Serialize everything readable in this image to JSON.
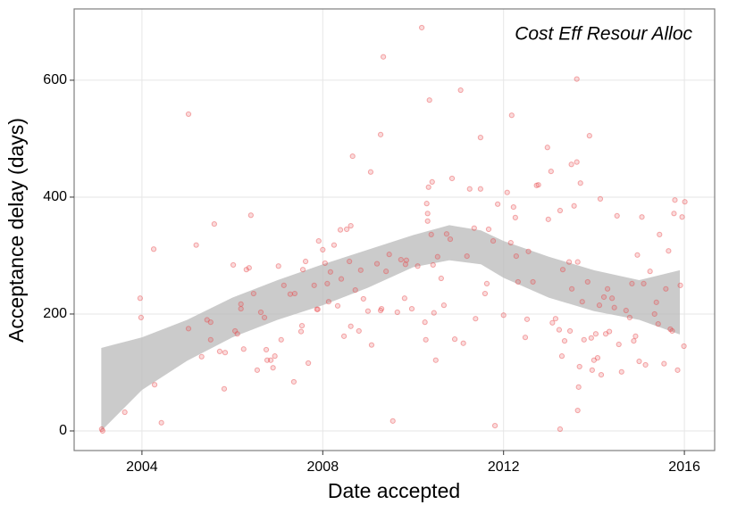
{
  "chart_data": {
    "type": "scatter",
    "annotation": "Cost Eff Resour Alloc",
    "xlabel": "Date accepted",
    "ylabel": "Acceptance delay (days)",
    "xlim": [
      2002.5,
      2016.67
    ],
    "xticks": [
      2004,
      2008,
      2012,
      2016
    ],
    "ylim": [
      -33.6,
      722
    ],
    "yticks": [
      0,
      200,
      400,
      600
    ],
    "grid": true,
    "color": "#e8474a",
    "x": [
      2003.13,
      2003.11,
      2003.62,
      2003.96,
      2003.98,
      2004.26,
      2004.28,
      2004.43,
      2005.03,
      2005.03,
      2005.2,
      2005.32,
      2005.44,
      2005.52,
      2005.52,
      2005.6,
      2005.72,
      2005.82,
      2005.84,
      2006.02,
      2006.06,
      2006.11,
      2006.19,
      2006.19,
      2006.25,
      2006.31,
      2006.37,
      2006.41,
      2006.47,
      2006.55,
      2006.63,
      2006.71,
      2006.75,
      2006.77,
      2006.85,
      2006.9,
      2006.94,
      2007.02,
      2007.08,
      2007.14,
      2007.28,
      2007.38,
      2007.36,
      2007.52,
      2007.54,
      2007.56,
      2007.62,
      2007.68,
      2007.81,
      2007.87,
      2007.89,
      2007.91,
      2008.0,
      2008.05,
      2008.1,
      2008.13,
      2008.17,
      2008.25,
      2008.33,
      2008.39,
      2008.41,
      2008.47,
      2008.53,
      2008.62,
      2008.59,
      2008.62,
      2008.66,
      2008.72,
      2008.8,
      2008.84,
      2008.9,
      2009.0,
      2009.06,
      2009.08,
      2009.2,
      2009.28,
      2009.28,
      2009.3,
      2009.34,
      2009.4,
      2009.47,
      2009.55,
      2009.65,
      2009.73,
      2009.83,
      2009.85,
      2009.81,
      2009.97,
      2010.1,
      2010.19,
      2010.26,
      2010.28,
      2010.3,
      2010.32,
      2010.32,
      2010.34,
      2010.36,
      2010.42,
      2010.4,
      2010.44,
      2010.46,
      2010.5,
      2010.54,
      2010.62,
      2010.68,
      2010.74,
      2010.82,
      2010.86,
      2010.92,
      2011.05,
      2011.11,
      2011.19,
      2011.25,
      2011.35,
      2011.38,
      2011.49,
      2011.49,
      2011.59,
      2011.63,
      2011.67,
      2011.77,
      2011.81,
      2011.87,
      2012.0,
      2012.08,
      2012.16,
      2012.18,
      2012.22,
      2012.26,
      2012.28,
      2012.32,
      2012.48,
      2012.52,
      2012.55,
      2012.65,
      2012.73,
      2012.77,
      2012.97,
      2012.99,
      2013.05,
      2013.08,
      2013.15,
      2013.23,
      2013.25,
      2013.25,
      2013.29,
      2013.31,
      2013.35,
      2013.45,
      2013.47,
      2013.51,
      2013.5,
      2013.56,
      2013.62,
      2013.62,
      2013.64,
      2013.64,
      2013.66,
      2013.68,
      2013.7,
      2013.74,
      2013.78,
      2013.86,
      2013.9,
      2013.94,
      2013.96,
      2014.0,
      2014.04,
      2014.08,
      2014.12,
      2014.14,
      2014.16,
      2014.22,
      2014.26,
      2014.3,
      2014.34,
      2014.4,
      2014.45,
      2014.51,
      2014.55,
      2014.61,
      2014.71,
      2014.79,
      2014.84,
      2014.88,
      2014.92,
      2014.96,
      2015.0,
      2015.06,
      2015.1,
      2015.14,
      2015.24,
      2015.34,
      2015.38,
      2015.42,
      2015.45,
      2015.55,
      2015.59,
      2015.65,
      2015.69,
      2015.73,
      2015.77,
      2015.79,
      2015.85,
      2015.91,
      2015.95,
      2015.99,
      2016.01
    ],
    "values": [
      0,
      3,
      32,
      227,
      194,
      311,
      79,
      14,
      542,
      175,
      318,
      127,
      190,
      186,
      156,
      354,
      136,
      72,
      134,
      284,
      171,
      166,
      217,
      209,
      140,
      276,
      279,
      369,
      235,
      104,
      203,
      194,
      139,
      121,
      121,
      108,
      128,
      282,
      156,
      249,
      234,
      235,
      84,
      170,
      180,
      276,
      290,
      116,
      249,
      208,
      208,
      325,
      310,
      287,
      252,
      221,
      272,
      318,
      214,
      344,
      260,
      162,
      345,
      351,
      290,
      179,
      470,
      241,
      171,
      275,
      226,
      205,
      443,
      147,
      286,
      507,
      206,
      209,
      640,
      273,
      302,
      17,
      203,
      293,
      285,
      292,
      227,
      209,
      282,
      690,
      186,
      156,
      389,
      359,
      372,
      417,
      566,
      426,
      336,
      284,
      202,
      121,
      298,
      261,
      215,
      337,
      328,
      432,
      157,
      583,
      150,
      299,
      414,
      347,
      192,
      502,
      414,
      235,
      252,
      345,
      325,
      9,
      388,
      198,
      408,
      322,
      540,
      383,
      365,
      299,
      255,
      160,
      191,
      307,
      255,
      420,
      421,
      485,
      362,
      444,
      185,
      192,
      173,
      3,
      377,
      128,
      276,
      154,
      289,
      171,
      243,
      456,
      385,
      460,
      602,
      289,
      35,
      75,
      110,
      424,
      221,
      156,
      255,
      505,
      159,
      104,
      121,
      166,
      125,
      215,
      397,
      96,
      229,
      166,
      243,
      170,
      227,
      211,
      368,
      148,
      101,
      206,
      194,
      252,
      154,
      162,
      301,
      119,
      366,
      252,
      113,
      273,
      200,
      220,
      183,
      336,
      115,
      243,
      308,
      174,
      171,
      372,
      395,
      104,
      249,
      366,
      145,
      392
    ],
    "band": {
      "color": "#bebebe",
      "x": [
        2003.1,
        2004,
        2005,
        2006,
        2007,
        2008,
        2009,
        2010,
        2010.8,
        2011.5,
        2012,
        2013,
        2014,
        2015,
        2015.9
      ],
      "upper": [
        142,
        160,
        190,
        228,
        258,
        285,
        310,
        335,
        352,
        343,
        325,
        298,
        275,
        258,
        275
      ],
      "lower": [
        0,
        70,
        120,
        160,
        190,
        215,
        245,
        280,
        292,
        285,
        262,
        228,
        205,
        190,
        165
      ]
    }
  }
}
